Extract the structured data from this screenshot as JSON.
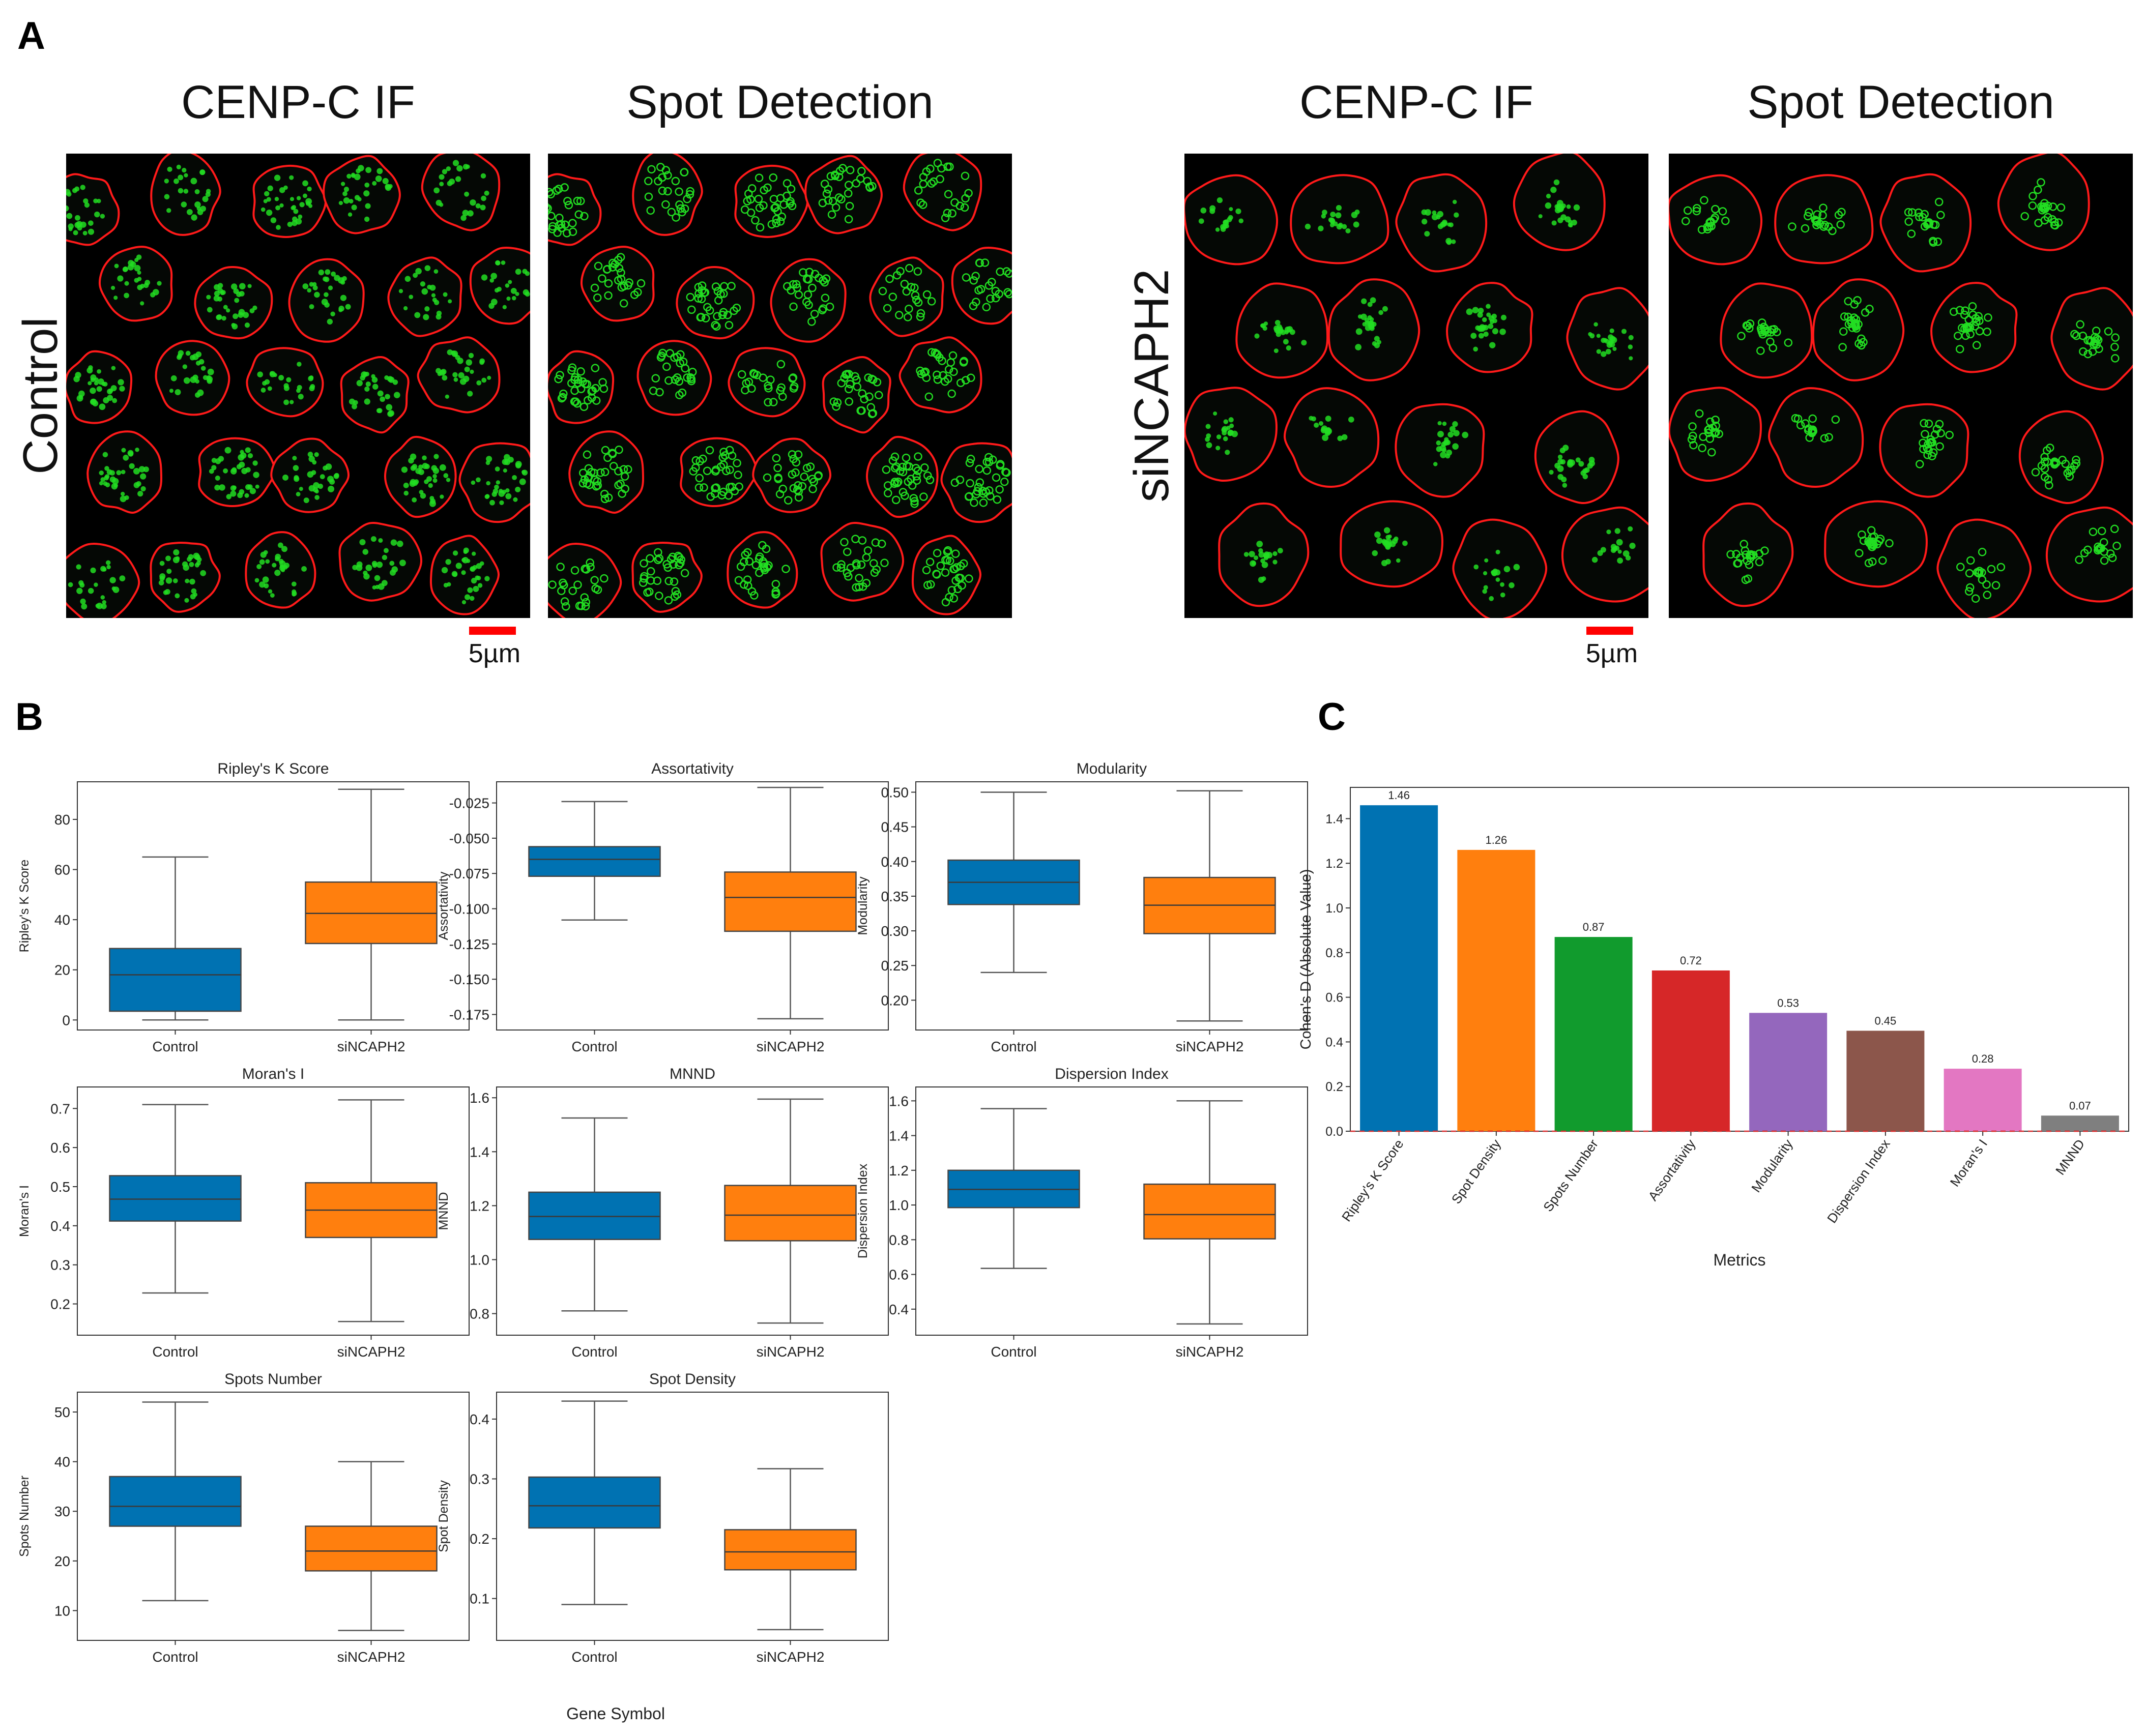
{
  "figure": {
    "panel_letters": {
      "a": "A",
      "b": "B",
      "c": "C"
    },
    "colors": {
      "control": "#0072B2",
      "sinc": "#FF7F0E",
      "nucleus_outline": "#FF1A1A",
      "spot": "#22DD22",
      "scale_bar": "#FF0000",
      "axis": "#333333"
    }
  },
  "panel_a": {
    "column_titles": [
      "CENP-C IF",
      "Spot Detection",
      "CENP-C IF",
      "Spot Detection"
    ],
    "row_labels": {
      "left": "Control",
      "right": "siNCAPH2"
    },
    "scale_bar_label": "5µm",
    "images": [
      {
        "condition": "Control",
        "kind": "IF"
      },
      {
        "condition": "Control",
        "kind": "Spot Detection"
      },
      {
        "condition": "siNCAPH2",
        "kind": "IF"
      },
      {
        "condition": "siNCAPH2",
        "kind": "Spot Detection"
      }
    ]
  },
  "panel_b": {
    "x_axis_title": "Gene Symbol",
    "categories": [
      "Control",
      "siNCAPH2"
    ]
  },
  "panel_c": {
    "note": "bar chart of effect sizes"
  },
  "chart_data": [
    {
      "type": "box",
      "title": "Ripley's K Score",
      "ylabel": "Ripley's K Score",
      "categories": [
        "Control",
        "siNCAPH2"
      ],
      "ylim": [
        -4,
        95
      ],
      "yticks": [
        0,
        20,
        40,
        60,
        80
      ],
      "tick_format": "0",
      "boxes": [
        {
          "name": "Control",
          "whisker_low": 0,
          "q1": 3.5,
          "median": 18,
          "q3": 28.5,
          "whisker_high": 65
        },
        {
          "name": "siNCAPH2",
          "whisker_low": 0,
          "q1": 30.5,
          "median": 42.5,
          "q3": 55,
          "whisker_high": 92
        }
      ]
    },
    {
      "type": "box",
      "title": "Assortativity",
      "ylabel": "Assortativity",
      "categories": [
        "Control",
        "siNCAPH2"
      ],
      "ylim": [
        -0.186,
        -0.01
      ],
      "yticks": [
        -0.175,
        -0.15,
        -0.125,
        -0.1,
        -0.075,
        -0.05,
        -0.025
      ],
      "tick_format": "0.000",
      "boxes": [
        {
          "name": "Control",
          "whisker_low": -0.108,
          "q1": -0.077,
          "median": -0.065,
          "q3": -0.056,
          "whisker_high": -0.024
        },
        {
          "name": "siNCAPH2",
          "whisker_low": -0.178,
          "q1": -0.116,
          "median": -0.092,
          "q3": -0.074,
          "whisker_high": -0.014
        }
      ]
    },
    {
      "type": "box",
      "title": "Modularity",
      "ylabel": "Modularity",
      "categories": [
        "Control",
        "siNCAPH2"
      ],
      "ylim": [
        0.157,
        0.515
      ],
      "yticks": [
        0.2,
        0.25,
        0.3,
        0.35,
        0.4,
        0.45,
        0.5
      ],
      "tick_format": "0.00",
      "boxes": [
        {
          "name": "Control",
          "whisker_low": 0.24,
          "q1": 0.338,
          "median": 0.37,
          "q3": 0.402,
          "whisker_high": 0.5
        },
        {
          "name": "siNCAPH2",
          "whisker_low": 0.17,
          "q1": 0.296,
          "median": 0.337,
          "q3": 0.377,
          "whisker_high": 0.502
        }
      ]
    },
    {
      "type": "box",
      "title": "Moran's I",
      "ylabel": "Moran's I",
      "categories": [
        "Control",
        "siNCAPH2"
      ],
      "ylim": [
        0.12,
        0.755
      ],
      "yticks": [
        0.2,
        0.3,
        0.4,
        0.5,
        0.6,
        0.7
      ],
      "tick_format": "0.0",
      "boxes": [
        {
          "name": "Control",
          "whisker_low": 0.228,
          "q1": 0.412,
          "median": 0.468,
          "q3": 0.528,
          "whisker_high": 0.71
        },
        {
          "name": "siNCAPH2",
          "whisker_low": 0.155,
          "q1": 0.37,
          "median": 0.44,
          "q3": 0.51,
          "whisker_high": 0.722
        }
      ]
    },
    {
      "type": "box",
      "title": "MNND",
      "ylabel": "MNND",
      "categories": [
        "Control",
        "siNCAPH2"
      ],
      "ylim": [
        0.72,
        1.64
      ],
      "yticks": [
        0.8,
        1.0,
        1.2,
        1.4,
        1.6
      ],
      "tick_format": "0.0",
      "boxes": [
        {
          "name": "Control",
          "whisker_low": 0.81,
          "q1": 1.075,
          "median": 1.16,
          "q3": 1.25,
          "whisker_high": 1.525
        },
        {
          "name": "siNCAPH2",
          "whisker_low": 0.765,
          "q1": 1.07,
          "median": 1.165,
          "q3": 1.275,
          "whisker_high": 1.595
        }
      ]
    },
    {
      "type": "box",
      "title": "Dispersion Index",
      "ylabel": "Dispersion Index",
      "categories": [
        "Control",
        "siNCAPH2"
      ],
      "ylim": [
        0.25,
        1.68
      ],
      "yticks": [
        0.4,
        0.6,
        0.8,
        1.0,
        1.2,
        1.4,
        1.6
      ],
      "tick_format": "0.0",
      "boxes": [
        {
          "name": "Control",
          "whisker_low": 0.635,
          "q1": 0.985,
          "median": 1.09,
          "q3": 1.2,
          "whisker_high": 1.555
        },
        {
          "name": "siNCAPH2",
          "whisker_low": 0.315,
          "q1": 0.805,
          "median": 0.945,
          "q3": 1.12,
          "whisker_high": 1.6
        }
      ]
    },
    {
      "type": "box",
      "title": "Spots Number",
      "ylabel": "Spots Number",
      "categories": [
        "Control",
        "siNCAPH2"
      ],
      "ylim": [
        4,
        54
      ],
      "yticks": [
        10,
        20,
        30,
        40,
        50
      ],
      "tick_format": "0",
      "boxes": [
        {
          "name": "Control",
          "whisker_low": 12,
          "q1": 27,
          "median": 31,
          "q3": 37,
          "whisker_high": 52
        },
        {
          "name": "siNCAPH2",
          "whisker_low": 6,
          "q1": 18,
          "median": 22,
          "q3": 27,
          "whisker_high": 40
        }
      ]
    },
    {
      "type": "box",
      "title": "Spot Density",
      "ylabel": "Spot Density",
      "categories": [
        "Control",
        "siNCAPH2"
      ],
      "ylim": [
        0.03,
        0.445
      ],
      "yticks": [
        0.1,
        0.2,
        0.3,
        0.4
      ],
      "tick_format": "0.0",
      "boxes": [
        {
          "name": "Control",
          "whisker_low": 0.09,
          "q1": 0.218,
          "median": 0.255,
          "q3": 0.303,
          "whisker_high": 0.43
        },
        {
          "name": "siNCAPH2",
          "whisker_low": 0.048,
          "q1": 0.148,
          "median": 0.178,
          "q3": 0.215,
          "whisker_high": 0.317
        }
      ]
    },
    {
      "type": "bar",
      "title": "",
      "xlabel": "Metrics",
      "ylabel": "Cohen's D (Absolute Value)",
      "ylim": [
        0,
        1.54
      ],
      "yticks": [
        0.0,
        0.2,
        0.4,
        0.6,
        0.8,
        1.0,
        1.2,
        1.4
      ],
      "tick_format": "0.0",
      "categories": [
        "Ripley's K Score",
        "Spot Density",
        "Spots Number",
        "Assortativity",
        "Modularity",
        "Dispersion Index",
        "Moran's I",
        "MNND"
      ],
      "values": [
        1.46,
        1.26,
        0.87,
        0.72,
        0.53,
        0.45,
        0.28,
        0.07
      ],
      "value_labels": [
        "1.46",
        "1.26",
        "0.87",
        "0.72",
        "0.53",
        "0.45",
        "0.28",
        "0.07"
      ],
      "bar_colors": [
        "#0072B2",
        "#FF7F0E",
        "#119B2D",
        "#D62728",
        "#9467BD",
        "#8C564B",
        "#E377C2",
        "#7F7F7F"
      ],
      "reference_line": 0
    }
  ]
}
